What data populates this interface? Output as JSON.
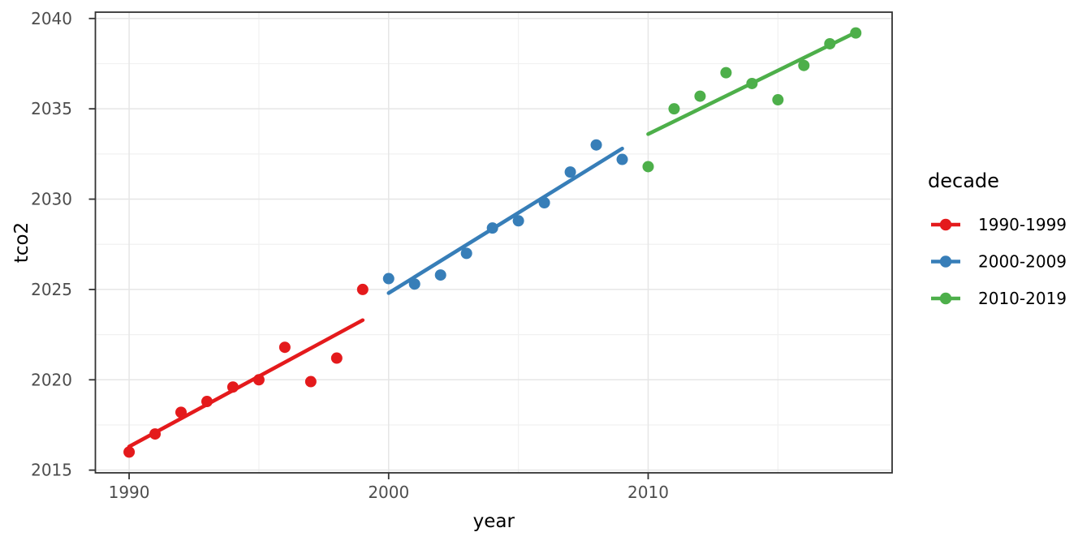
{
  "figure": {
    "background_color": "#FFFFFF",
    "description": "ggplot-style scatter plot with per-decade linear trend lines"
  },
  "chart_data": {
    "type": "scatter",
    "title": "",
    "xlabel": "year",
    "ylabel": "tco2",
    "xlim": [
      1988.7,
      2019.4
    ],
    "ylim": [
      2014.85,
      2040.35
    ],
    "x_ticks": [
      1990,
      2000,
      2010
    ],
    "y_ticks": [
      2015,
      2020,
      2025,
      2030,
      2035,
      2040
    ],
    "x_minor_gridlines": [
      1995,
      2005,
      2015
    ],
    "y_minor_gridlines": [
      2017.5,
      2022.5,
      2027.5,
      2032.5,
      2037.5
    ],
    "grid": "on",
    "legend": {
      "title": "decade",
      "position": "right"
    },
    "colors": {
      "panel_border": "#333333",
      "major_grid": "#E6E6E6",
      "minor_grid": "#F1F1F1",
      "tick_label": "#4D4D4D",
      "axis_title": "#000000",
      "legend_text": "#000000",
      "tick_mark": "#333333"
    },
    "series": [
      {
        "name": "1990-1999",
        "color": "#E41A1C",
        "points": [
          [
            1990,
            2016.0
          ],
          [
            1991,
            2017.0
          ],
          [
            1992,
            2018.2
          ],
          [
            1993,
            2018.8
          ],
          [
            1994,
            2019.6
          ],
          [
            1995,
            2020.0
          ],
          [
            1996,
            2021.8
          ],
          [
            1997,
            2019.9
          ],
          [
            1998,
            2021.2
          ],
          [
            1999,
            2025.0
          ]
        ],
        "trend": {
          "x1": 1990,
          "y1": 2016.3,
          "x2": 1999,
          "y2": 2023.3
        }
      },
      {
        "name": "2000-2009",
        "color": "#377EB8",
        "points": [
          [
            2000,
            2025.6
          ],
          [
            2001,
            2025.3
          ],
          [
            2002,
            2025.8
          ],
          [
            2003,
            2027.0
          ],
          [
            2004,
            2028.4
          ],
          [
            2005,
            2028.8
          ],
          [
            2006,
            2029.8
          ],
          [
            2007,
            2031.5
          ],
          [
            2008,
            2033.0
          ],
          [
            2009,
            2032.2
          ]
        ],
        "trend": {
          "x1": 2000,
          "y1": 2024.8,
          "x2": 2009,
          "y2": 2032.8
        }
      },
      {
        "name": "2010-2019",
        "color": "#4DAF4A",
        "points": [
          [
            2010,
            2031.8
          ],
          [
            2011,
            2035.0
          ],
          [
            2012,
            2035.7
          ],
          [
            2013,
            2037.0
          ],
          [
            2014,
            2036.4
          ],
          [
            2015,
            2035.5
          ],
          [
            2016,
            2037.4
          ],
          [
            2017,
            2038.6
          ],
          [
            2018,
            2039.2
          ]
        ],
        "trend": {
          "x1": 2010,
          "y1": 2033.6,
          "x2": 2018.1,
          "y2": 2039.3
        }
      }
    ]
  }
}
